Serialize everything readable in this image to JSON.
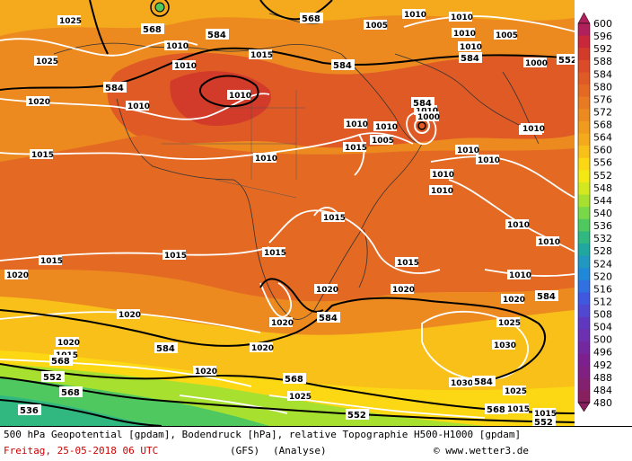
{
  "legend": {
    "values": [
      "600",
      "596",
      "592",
      "588",
      "584",
      "580",
      "576",
      "572",
      "568",
      "564",
      "560",
      "556",
      "552",
      "548",
      "544",
      "540",
      "536",
      "532",
      "528",
      "524",
      "520",
      "516",
      "512",
      "508",
      "504",
      "500",
      "496",
      "492",
      "488",
      "484",
      "480"
    ],
    "colors": [
      "#b0205a",
      "#c8283a",
      "#d23a2a",
      "#dc4a28",
      "#e05a26",
      "#e46a24",
      "#e87a22",
      "#ec8a20",
      "#f09a1e",
      "#f4aa1c",
      "#f8c018",
      "#fcd814",
      "#f4e814",
      "#d4e820",
      "#a8e030",
      "#78d848",
      "#50c860",
      "#30b880",
      "#20a8a0",
      "#2098c0",
      "#2088d8",
      "#3070e0",
      "#4058e0",
      "#5048d0",
      "#6038c0",
      "#6c30b0",
      "#7428a0",
      "#7c2090",
      "#802080",
      "#842070",
      "#882060"
    ]
  },
  "isobar_labels": [
    "1025",
    "1010",
    "1010",
    "1010",
    "1025",
    "1020",
    "1010",
    "1010",
    "1010",
    "1015",
    "1010",
    "1010",
    "1005",
    "1005",
    "1010",
    "1010",
    "1010",
    "1005",
    "1000",
    "1000",
    "1010",
    "1010",
    "1010",
    "1005",
    "1015",
    "1010",
    "1010",
    "1015",
    "1015",
    "1015",
    "1010",
    "1010",
    "1010",
    "1015",
    "1020",
    "1015",
    "1020",
    "1015",
    "1020",
    "1010",
    "1020",
    "1020",
    "1030",
    "1020",
    "1020",
    "1025",
    "1025",
    "1020",
    "1025",
    "1030",
    "1020",
    "1015",
    "1015",
    "1015"
  ],
  "height_labels": [
    "568",
    "568",
    "584",
    "584",
    "584",
    "584",
    "584",
    "584",
    "584",
    "584",
    "584",
    "568",
    "552",
    "568",
    "552",
    "536",
    "568",
    "568",
    "552",
    "552"
  ],
  "caption": {
    "line1": "500 hPa Geopotential [gpdam], Bodendruck [hPa], relative Topographie H500-H1000 [gpdam]",
    "line2": "Freitag, 25-05-2018  06 UTC",
    "model": "(GFS)",
    "analyse": "(Analyse)",
    "credit": "© www.wetter3.de"
  }
}
